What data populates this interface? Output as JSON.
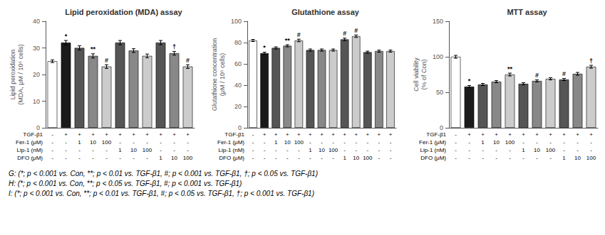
{
  "chart_data": [
    {
      "type": "bar",
      "title": "Lipid peroxidation (MDA) assay",
      "ylabel": "Lipid peroxidation\n(MDA, μM / 10⁶ cells)",
      "ylim": [
        0,
        40
      ],
      "yticks": [
        0,
        10,
        20,
        30,
        40
      ],
      "values": [
        25,
        32,
        30,
        27,
        23,
        32,
        29,
        27,
        32,
        28,
        23
      ],
      "errors": [
        0.5,
        0.8,
        0.8,
        0.8,
        0.7,
        0.8,
        0.7,
        0.7,
        0.8,
        0.7,
        0.7
      ],
      "annotations": [
        null,
        "*",
        null,
        "**",
        "#",
        null,
        null,
        null,
        null,
        "†",
        "#"
      ],
      "colors": [
        "#ffffff",
        "#1a1a1a",
        "#555555",
        "#888888",
        "#cccccc",
        "#555555",
        "#888888",
        "#cccccc",
        "#555555",
        "#888888",
        "#cccccc"
      ],
      "table": [
        {
          "label": "TGF-β1",
          "values": [
            "-",
            "+",
            "+",
            "+",
            "+",
            "+",
            "+",
            "+",
            "+",
            "+",
            "+"
          ]
        },
        {
          "label": "Fer-1 (μM)",
          "values": [
            "-",
            "-",
            "1",
            "10",
            "100",
            "-",
            "-",
            "-",
            "-",
            "-",
            "-"
          ]
        },
        {
          "label": "Lip-1 (nM)",
          "values": [
            "-",
            "-",
            "-",
            "-",
            "-",
            "1",
            "10",
            "100",
            "-",
            "-",
            "-"
          ]
        },
        {
          "label": "DFO (μM)",
          "values": [
            "-",
            "-",
            "-",
            "-",
            "-",
            "-",
            "-",
            "-",
            "1",
            "10",
            "100"
          ]
        }
      ],
      "footnote": "G: (*; p < 0.001 vs. Con, **; p < 0.01 vs. TGF-β1, #; p < 0.001 vs. TGF-β1, †; p < 0.05 vs. TGF-β1)",
      "grid": false,
      "tick_labels": "y"
    },
    {
      "type": "bar",
      "title": "Glutathione assay",
      "ylabel": "Glutathione concentration\n(μM / 10⁶ cells)",
      "ylim": [
        0,
        100
      ],
      "yticks": [
        0,
        20,
        40,
        60,
        80,
        100
      ],
      "values": [
        82,
        70,
        75,
        77,
        82,
        73,
        73,
        73,
        83,
        86,
        71,
        72,
        72
      ],
      "errors": [
        1.0,
        1.0,
        1.0,
        1.0,
        1.2,
        1.0,
        1.0,
        1.0,
        1.2,
        1.2,
        1.0,
        1.0,
        1.0
      ],
      "annotations": [
        null,
        "*",
        null,
        "**",
        "#",
        null,
        null,
        null,
        "#",
        "#",
        null,
        null,
        null
      ],
      "colors": [
        "#ffffff",
        "#1a1a1a",
        "#555555",
        "#888888",
        "#cccccc",
        "#555555",
        "#888888",
        "#cccccc",
        "#555555",
        "#cccccc",
        "#555555",
        "#888888",
        "#cccccc"
      ],
      "table": [
        {
          "label": "TGF-β1",
          "values": [
            "-",
            "+",
            "+",
            "+",
            "+",
            "+",
            "+",
            "+",
            "+",
            "+",
            "+",
            "+",
            "+"
          ]
        },
        {
          "label": "Fer-1 (μM)",
          "values": [
            "-",
            "-",
            "1",
            "10",
            "100",
            "-",
            "-",
            "-",
            "-",
            "-",
            "-",
            "-",
            "-"
          ]
        },
        {
          "label": "Lip-1 (nM)",
          "values": [
            "-",
            "-",
            "-",
            "-",
            "-",
            "1",
            "10",
            "100",
            "-",
            "-",
            "-",
            "-",
            "-"
          ]
        },
        {
          "label": "DFO (μM)",
          "values": [
            "-",
            "-",
            "-",
            "-",
            "-",
            "-",
            "-",
            "-",
            "1",
            "10",
            "100",
            "-",
            "-"
          ]
        }
      ],
      "footnote": "H: (*; p < 0.001 vs. Con, **; p < 0.05 vs. TGF-β1, #; p < 0.001 vs. TGF-β1)",
      "grid": false,
      "tick_labels": "y"
    },
    {
      "type": "bar",
      "title": "MTT assay",
      "ylabel": "Cell viability\n(% of Con)",
      "ylim": [
        0,
        150
      ],
      "yticks": [
        0,
        50,
        100,
        150
      ],
      "values": [
        100,
        58,
        61,
        65,
        75,
        62,
        66,
        69,
        68,
        76,
        86
      ],
      "errors": [
        2.0,
        1.5,
        1.5,
        1.5,
        2.0,
        1.5,
        1.5,
        1.5,
        1.5,
        2.0,
        2.0
      ],
      "annotations": [
        null,
        "*",
        null,
        null,
        "**",
        null,
        "#",
        null,
        "#",
        null,
        "†"
      ],
      "colors": [
        "#ffffff",
        "#1a1a1a",
        "#555555",
        "#888888",
        "#cccccc",
        "#555555",
        "#888888",
        "#cccccc",
        "#555555",
        "#888888",
        "#cccccc"
      ],
      "table": [
        {
          "label": "TGF-β1",
          "values": [
            "-",
            "+",
            "+",
            "+",
            "+",
            "+",
            "+",
            "+",
            "+",
            "+",
            "+"
          ]
        },
        {
          "label": "Fer-1 (μM)",
          "values": [
            "-",
            "-",
            "1",
            "10",
            "100",
            "-",
            "-",
            "-",
            "-",
            "-",
            "-"
          ]
        },
        {
          "label": "Lip-1 (nM)",
          "values": [
            "-",
            "-",
            "-",
            "-",
            "-",
            "1",
            "10",
            "100",
            "-",
            "-",
            "-"
          ]
        },
        {
          "label": "DFO (μM)",
          "values": [
            "-",
            "-",
            "-",
            "-",
            "-",
            "-",
            "-",
            "-",
            "1",
            "10",
            "100"
          ]
        }
      ],
      "footnote": "I: (*; p < 0.001 vs. Con, **; p < 0.01 vs. TGF-β1, #; p < 0.05 vs. TGF-β1, †; p < 0.001 vs. TGF-β1)",
      "grid": false,
      "tick_labels": "y"
    }
  ]
}
